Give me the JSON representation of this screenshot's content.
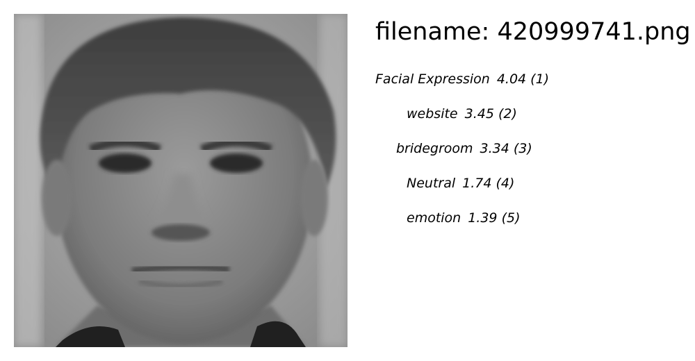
{
  "filename_text": "filename: 420999741.png",
  "photo": {
    "subject": "grayscale face photo"
  },
  "labels": [
    {
      "name": "Facial Expression",
      "score": "4.04",
      "rank": "(1)"
    },
    {
      "name": "website",
      "score": "3.45",
      "rank": "(2)"
    },
    {
      "name": "bridegroom",
      "score": "3.34",
      "rank": "(3)"
    },
    {
      "name": "Neutral",
      "score": "1.74",
      "rank": "(4)"
    },
    {
      "name": "emotion",
      "score": "1.39",
      "rank": "(5)"
    }
  ]
}
